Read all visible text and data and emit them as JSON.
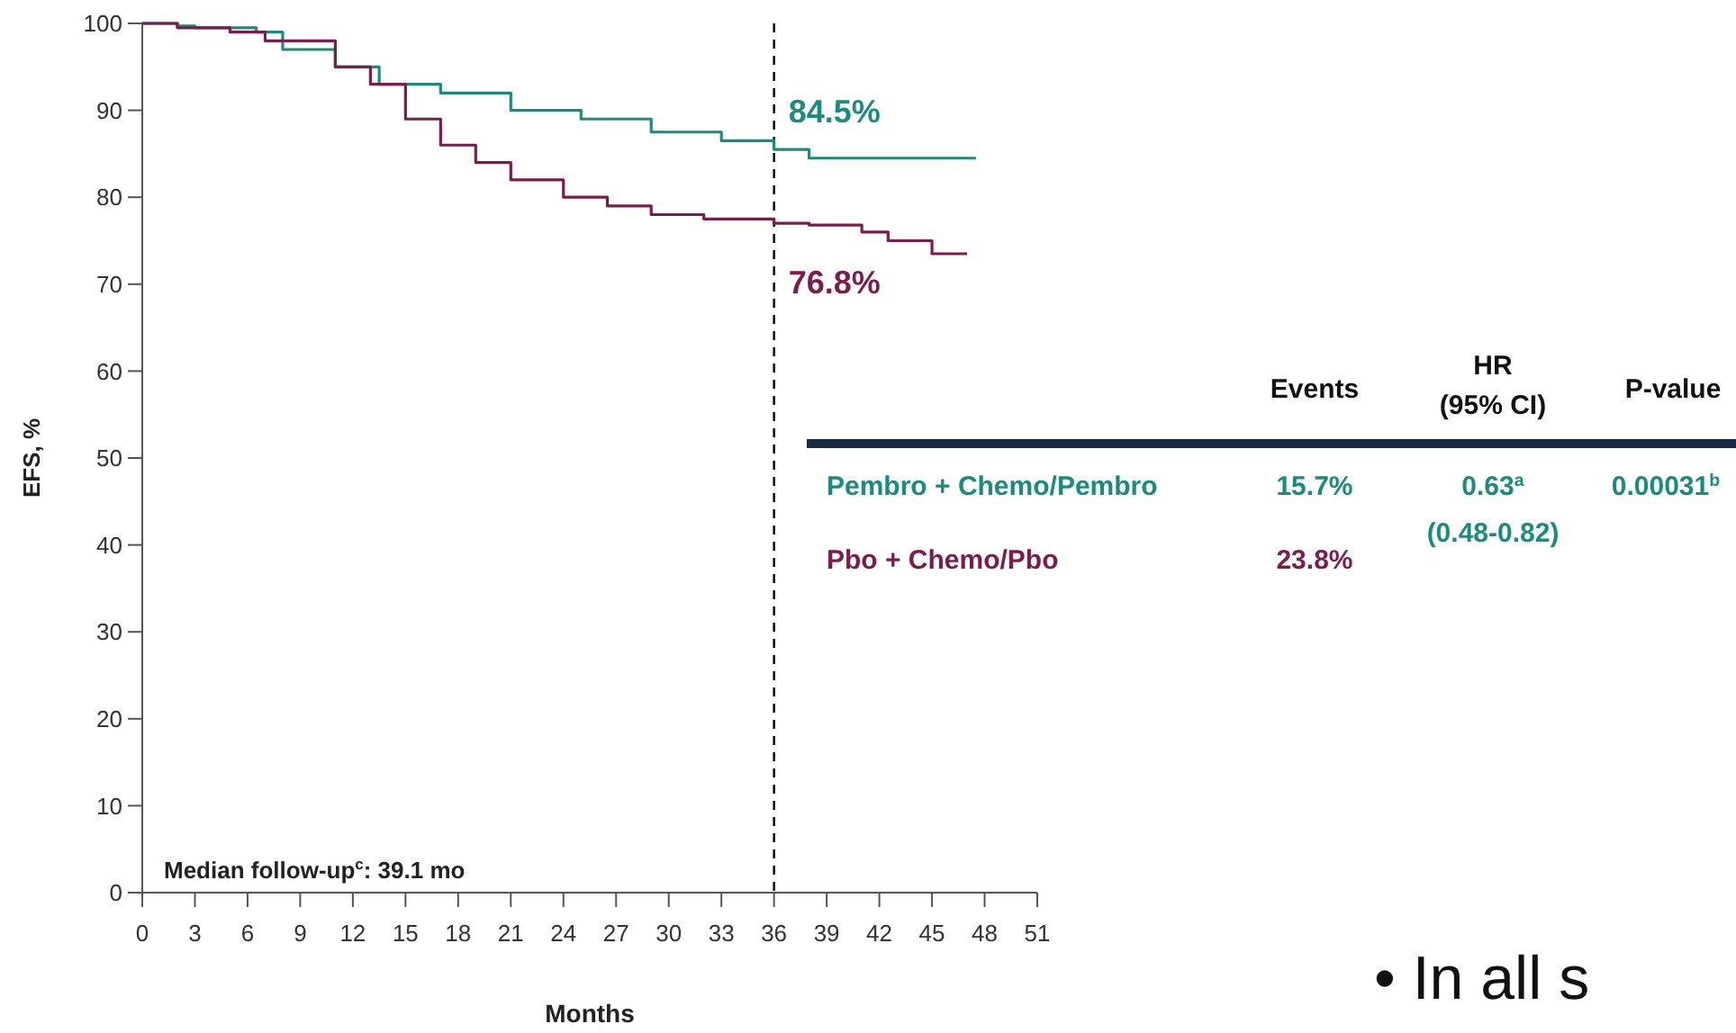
{
  "chart_data": {
    "type": "step",
    "xlabel": "Months",
    "ylabel": "EFS, %",
    "xlim": [
      0,
      51
    ],
    "xticks": [
      0,
      3,
      6,
      9,
      12,
      15,
      18,
      21,
      24,
      27,
      30,
      33,
      36,
      39,
      42,
      45,
      48,
      51
    ],
    "ylim": [
      0,
      100
    ],
    "yticks": [
      0,
      10,
      20,
      30,
      40,
      50,
      60,
      70,
      80,
      90,
      100
    ],
    "grid": false,
    "legend": "right",
    "line_style": "solid",
    "series": [
      {
        "name": "Pembro + Chemo/Pembro",
        "color": "#1b8c7b",
        "x": [
          0,
          2,
          3,
          6.5,
          8,
          11,
          13.5,
          17,
          21,
          25,
          29,
          33,
          36,
          38,
          47.5
        ],
        "values": [
          100,
          99.7,
          99.5,
          99,
          97,
          95,
          93,
          92,
          90,
          89,
          87.5,
          86.5,
          85.5,
          84.5,
          84.5
        ]
      },
      {
        "name": "Pbo + Chemo/Pbo",
        "color": "#7b1c4c",
        "x": [
          0,
          2,
          5,
          7,
          11,
          13,
          15,
          17,
          19,
          21,
          24,
          26.5,
          29,
          32,
          36,
          38,
          41,
          42.5,
          45,
          47
        ],
        "values": [
          100,
          99.5,
          99,
          98,
          95,
          93,
          89,
          86,
          84,
          82,
          80,
          79,
          78,
          77.5,
          77,
          76.8,
          76,
          75,
          73.5,
          73.5
        ]
      }
    ],
    "ref_lines": [
      {
        "axis": "x",
        "value": 36,
        "color": "#000000",
        "line_style": "dashed"
      }
    ],
    "annotations": [
      {
        "text": "84.5%",
        "x": 36,
        "y": 84.5
      },
      {
        "text": "76.8%",
        "x": 36,
        "y": 76.8
      },
      "Median follow-up$^{c}$: 39.1 mo",
      "Events",
      "HR",
      "(95% CI)",
      "P-value",
      "15.7%",
      "23.8%",
      "0.63$^{a}$",
      "(0.48-0.82)",
      "0.00031$^{b}$",
      "• In all s"
    ]
  }
}
